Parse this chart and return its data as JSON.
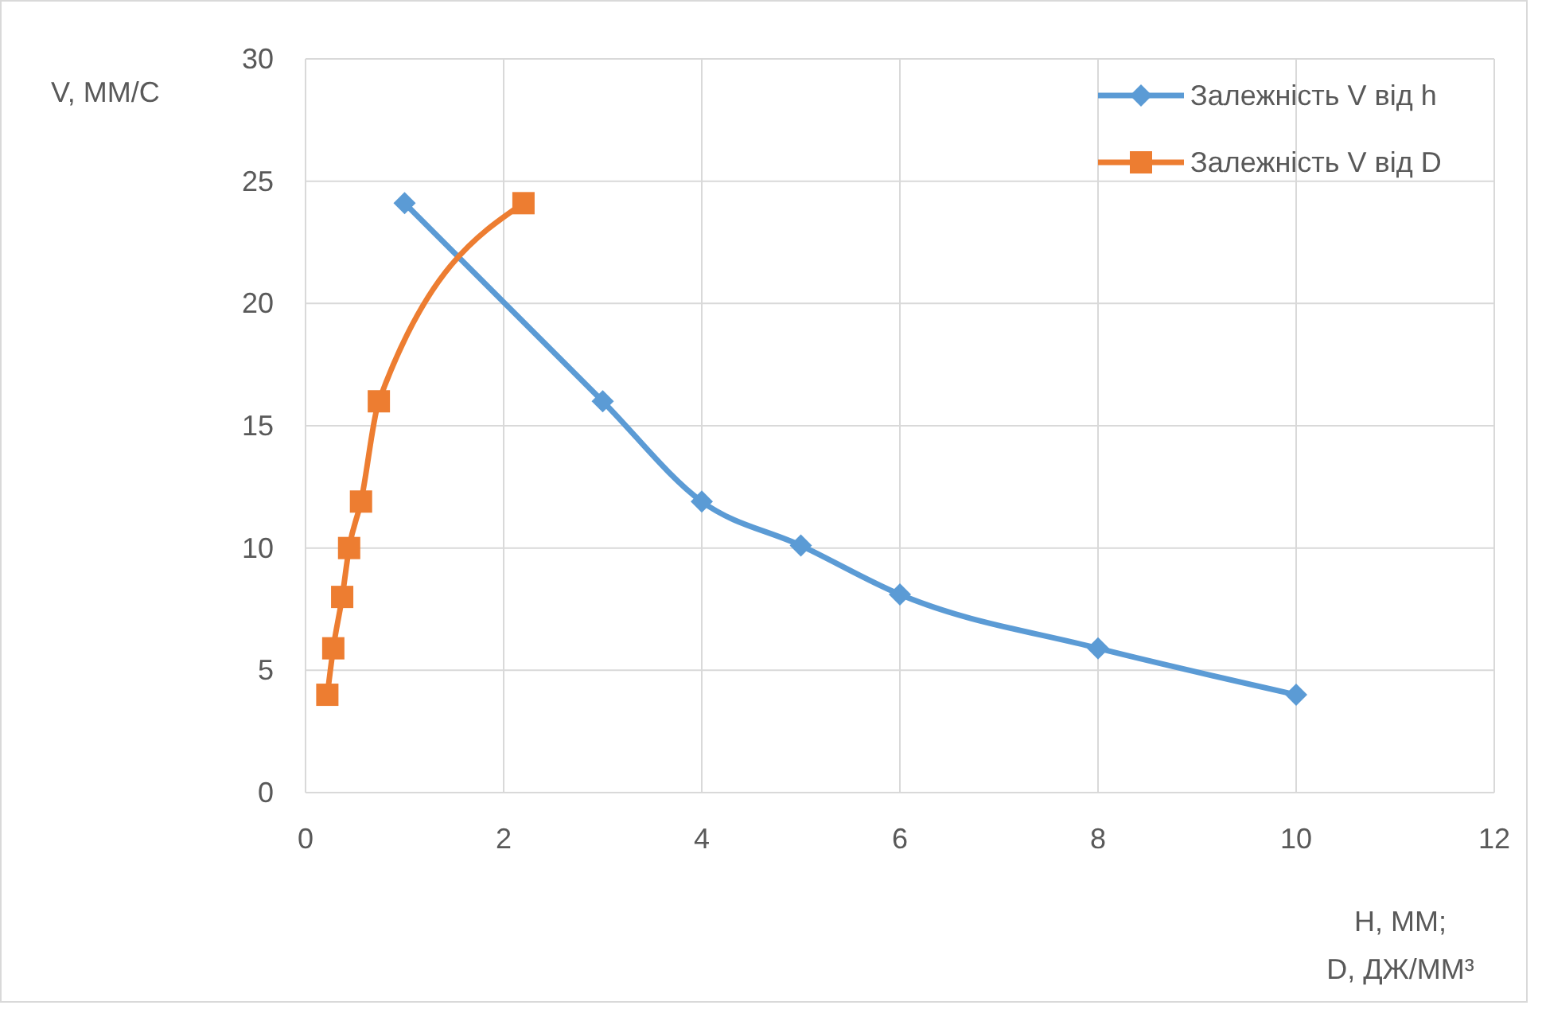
{
  "chart_data": {
    "type": "line",
    "xlabel": "H, ММ;\nD, ДЖ/ММ³",
    "ylabel": "V, ММ/С",
    "xlim": [
      0,
      12
    ],
    "xticks": [
      0,
      2,
      4,
      6,
      8,
      10,
      12
    ],
    "ylim": [
      0,
      30
    ],
    "yticks": [
      0,
      5,
      10,
      15,
      20,
      25,
      30
    ],
    "grid": true,
    "legend": "top right",
    "series": [
      {
        "name": "Залежність V від h",
        "color": "#5b9bd5",
        "marker": "diamond",
        "x": [
          1,
          3,
          4,
          5,
          6,
          8,
          10
        ],
        "values": [
          24.1,
          16,
          11.9,
          10.1,
          8.1,
          5.9,
          4
        ]
      },
      {
        "name": "Залежність V від D",
        "color": "#ed7d31",
        "marker": "square",
        "x": [
          0.22,
          0.28,
          0.37,
          0.44,
          0.56,
          0.74,
          2.2
        ],
        "values": [
          4,
          5.9,
          8,
          10,
          11.9,
          16,
          24.1
        ]
      }
    ]
  }
}
